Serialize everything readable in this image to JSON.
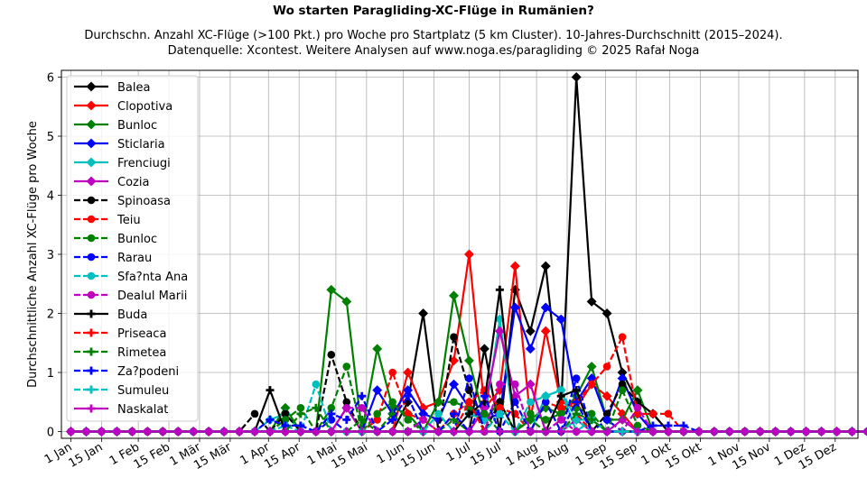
{
  "chart_data": {
    "type": "line",
    "title": "Wo starten Paragliding-XC-Flüge in Rumänien?",
    "subtitle_lines": [
      "Durchschn. Anzahl XC-Flüge (>100 Pkt.) pro Woche pro Startplatz (5 km Cluster). 10-Jahres-Durchschnitt (2015–2024).",
      "Datenquelle: Xcontest. Weitere Analysen auf www.noga.es/paragliding © 2025 Rafał Noga"
    ],
    "xlabel": "",
    "ylabel": "Durchschnittliche Anzahl XC-Flüge pro Woche",
    "grid": true,
    "legend_position": "upper-left",
    "xlim": [
      0,
      52
    ],
    "ylim": [
      -0.1,
      6.15
    ],
    "y_ticks": [
      0,
      1,
      2,
      3,
      4,
      5,
      6
    ],
    "x_ticks": [
      {
        "x": 0,
        "label": "1 Jan"
      },
      {
        "x": 2,
        "label": "15 Jan"
      },
      {
        "x": 4.4,
        "label": "1 Feb"
      },
      {
        "x": 6.4,
        "label": "15 Feb"
      },
      {
        "x": 8.4,
        "label": "1 Mär"
      },
      {
        "x": 10.4,
        "label": "15 Mär"
      },
      {
        "x": 12.9,
        "label": "1 Apr"
      },
      {
        "x": 14.9,
        "label": "15 Apr"
      },
      {
        "x": 17.3,
        "label": "1 Mai"
      },
      {
        "x": 19.3,
        "label": "15 Mai"
      },
      {
        "x": 21.7,
        "label": "1 Jun"
      },
      {
        "x": 23.7,
        "label": "15 Jun"
      },
      {
        "x": 26,
        "label": "1 Jul"
      },
      {
        "x": 28,
        "label": "15 Jul"
      },
      {
        "x": 30.4,
        "label": "1 Aug"
      },
      {
        "x": 32.4,
        "label": "15 Aug"
      },
      {
        "x": 34.9,
        "label": "1 Sep"
      },
      {
        "x": 36.9,
        "label": "15 Sep"
      },
      {
        "x": 39.1,
        "label": "1 Okt"
      },
      {
        "x": 41.1,
        "label": "15 Okt"
      },
      {
        "x": 43.6,
        "label": "1 Nov"
      },
      {
        "x": 45.6,
        "label": "15 Nov"
      },
      {
        "x": 47.9,
        "label": "1 Dez"
      },
      {
        "x": 49.9,
        "label": "15 Dez"
      }
    ],
    "weeks": [
      0,
      1,
      2,
      3,
      4,
      5,
      6,
      7,
      8,
      9,
      10,
      11,
      12,
      13,
      14,
      15,
      16,
      17,
      18,
      19,
      20,
      21,
      22,
      23,
      24,
      25,
      26,
      27,
      28,
      29,
      30,
      31,
      32,
      33,
      34,
      35,
      36,
      37,
      38,
      39,
      40,
      41,
      42,
      43,
      44,
      45,
      46,
      47,
      48,
      49,
      50,
      51,
      52
    ],
    "series": [
      {
        "name": "Balea",
        "color": "#000000",
        "dash": "solid",
        "marker": "diamond",
        "values": [
          0,
          0,
          0,
          0,
          0,
          0,
          0,
          0,
          0,
          0,
          0,
          0,
          0,
          0,
          0,
          0,
          0,
          0,
          0,
          0,
          0,
          0,
          0.5,
          2.0,
          0,
          0,
          0,
          1.4,
          0,
          2.4,
          1.7,
          2.8,
          0.4,
          6.0,
          2.2,
          2.0,
          1.0,
          0.5,
          0.3,
          0,
          0,
          0,
          0,
          0,
          0,
          0,
          0,
          0,
          0,
          0,
          0,
          0,
          0
        ]
      },
      {
        "name": "Clopotiva",
        "color": "#ff0000",
        "dash": "solid",
        "marker": "diamond",
        "values": [
          0,
          0,
          0,
          0,
          0,
          0,
          0,
          0,
          0,
          0,
          0,
          0,
          0,
          0,
          0,
          0,
          0,
          0,
          0,
          0,
          0,
          0,
          1.0,
          0.4,
          0.5,
          1.2,
          3.0,
          0.4,
          0.7,
          2.8,
          0.2,
          1.7,
          0.5,
          0.4,
          0.8,
          0.6,
          0.3,
          0,
          0,
          0,
          0,
          0,
          0,
          0,
          0,
          0,
          0,
          0,
          0,
          0,
          0,
          0,
          0
        ]
      },
      {
        "name": "Bunloc",
        "color": "#008000",
        "dash": "solid",
        "marker": "diamond",
        "values": [
          0,
          0,
          0,
          0,
          0,
          0,
          0,
          0,
          0,
          0,
          0,
          0,
          0,
          0,
          0.4,
          0,
          0,
          2.4,
          2.2,
          0,
          1.4,
          0.4,
          0.3,
          0,
          0.5,
          2.3,
          1.2,
          0.2,
          0.5,
          0,
          0.2,
          0.4,
          0.3,
          0.6,
          1.1,
          0.2,
          0.2,
          0.7,
          0,
          0,
          0,
          0,
          0,
          0,
          0,
          0,
          0,
          0,
          0,
          0,
          0,
          0,
          0
        ]
      },
      {
        "name": "Sticlaria",
        "color": "#0000ff",
        "dash": "solid",
        "marker": "diamond",
        "values": [
          0,
          0,
          0,
          0,
          0,
          0,
          0,
          0,
          0,
          0,
          0,
          0,
          0,
          0,
          0,
          0,
          0,
          0,
          0,
          0,
          0.7,
          0.3,
          0.7,
          0.3,
          0.2,
          0.8,
          0.4,
          0.2,
          0.3,
          2.1,
          1.4,
          2.1,
          1.9,
          0.5,
          0.9,
          0.2,
          0.9,
          0.3,
          0,
          0,
          0,
          0,
          0,
          0,
          0,
          0,
          0,
          0,
          0,
          0,
          0,
          0,
          0
        ]
      },
      {
        "name": "Frenciugi",
        "color": "#00bfbf",
        "dash": "solid",
        "marker": "diamond",
        "values": [
          0,
          0,
          0,
          0,
          0,
          0,
          0,
          0,
          0,
          0,
          0,
          0,
          0,
          0.2,
          0.3,
          0,
          0,
          0,
          0,
          0,
          0,
          0,
          0,
          0,
          0,
          0,
          0.3,
          0.2,
          1.9,
          0,
          0,
          0.6,
          0.7,
          0,
          0.2,
          0,
          0,
          0,
          0,
          0,
          0,
          0,
          0,
          0,
          0,
          0,
          0,
          0,
          0,
          0,
          0,
          0,
          0
        ]
      },
      {
        "name": "Cozia",
        "color": "#bf00bf",
        "dash": "solid",
        "marker": "diamond",
        "values": [
          0,
          0,
          0,
          0,
          0,
          0,
          0,
          0,
          0,
          0,
          0,
          0,
          0,
          0,
          0,
          0,
          0,
          0,
          0.4,
          0,
          0,
          0,
          0,
          0,
          0,
          0,
          0,
          0.4,
          1.7,
          0.6,
          0.8,
          0,
          0,
          0.2,
          0,
          0,
          0,
          0,
          0,
          0,
          0,
          0,
          0,
          0,
          0,
          0,
          0,
          0,
          0,
          0,
          0,
          0,
          0
        ]
      },
      {
        "name": "Spinoasa",
        "color": "#000000",
        "dash": "dashed",
        "marker": "circle",
        "values": [
          0,
          0,
          0,
          0,
          0,
          0,
          0,
          0,
          0,
          0,
          0,
          0,
          0.3,
          0,
          0.3,
          0,
          0,
          1.3,
          0.5,
          0,
          0,
          0,
          0,
          0,
          0,
          1.6,
          0.7,
          0,
          0.5,
          0,
          0,
          0,
          0,
          0,
          0,
          0.3,
          0.8,
          0.5,
          0.3,
          0,
          0,
          0,
          0,
          0,
          0,
          0,
          0,
          0,
          0,
          0,
          0,
          0,
          0
        ]
      },
      {
        "name": "Teiu",
        "color": "#ff0000",
        "dash": "dashed",
        "marker": "circle",
        "values": [
          0,
          0,
          0,
          0,
          0,
          0,
          0,
          0,
          0,
          0,
          0,
          0,
          0,
          0,
          0,
          0,
          0,
          0,
          0,
          0,
          0.2,
          1.0,
          0.3,
          0.2,
          0,
          0.3,
          0.5,
          0.7,
          0.4,
          0.3,
          0,
          0.5,
          0.4,
          0.5,
          0.8,
          1.1,
          1.6,
          0.3,
          0.3,
          0.3,
          0,
          0,
          0,
          0,
          0,
          0,
          0,
          0,
          0,
          0,
          0,
          0,
          0
        ]
      },
      {
        "name": "Bunloc",
        "color": "#008000",
        "dash": "dashed",
        "marker": "circle",
        "values": [
          0,
          0,
          0,
          0,
          0,
          0,
          0,
          0,
          0,
          0,
          0,
          0,
          0,
          0,
          0.2,
          0.4,
          0,
          0.4,
          1.1,
          0,
          0.3,
          0.5,
          0.2,
          0,
          0.5,
          0.5,
          0.4,
          0.3,
          0,
          0,
          0.3,
          0.2,
          0.3,
          0.4,
          0.3,
          0,
          0.7,
          0.1,
          0,
          0,
          0,
          0,
          0,
          0,
          0,
          0,
          0,
          0,
          0,
          0,
          0,
          0,
          0
        ]
      },
      {
        "name": "Rarau",
        "color": "#0000ff",
        "dash": "dashed",
        "marker": "circle",
        "values": [
          0,
          0,
          0,
          0,
          0,
          0,
          0,
          0,
          0,
          0,
          0,
          0,
          0,
          0,
          0,
          0,
          0,
          0.2,
          0,
          0,
          0,
          0,
          0,
          0,
          0,
          0,
          0.9,
          0,
          0,
          0.5,
          0,
          0.5,
          0,
          0.9,
          0,
          0.2,
          0,
          0,
          0,
          0,
          0,
          0,
          0,
          0,
          0,
          0,
          0,
          0,
          0,
          0,
          0,
          0,
          0
        ]
      },
      {
        "name": "Sfa?nta Ana",
        "color": "#00bfbf",
        "dash": "dashed",
        "marker": "circle",
        "values": [
          0,
          0,
          0,
          0,
          0,
          0,
          0,
          0,
          0,
          0,
          0,
          0,
          0,
          0,
          0.1,
          0,
          0.8,
          0,
          0,
          0,
          0,
          0,
          0,
          0,
          0.3,
          0,
          0,
          0,
          0.3,
          0,
          0.5,
          0.6,
          0.7,
          0.2,
          0.2,
          0,
          0,
          0,
          0,
          0,
          0,
          0,
          0,
          0,
          0,
          0,
          0,
          0,
          0,
          0,
          0,
          0,
          0
        ]
      },
      {
        "name": "Dealul Marii",
        "color": "#bf00bf",
        "dash": "dashed",
        "marker": "circle",
        "values": [
          0,
          0,
          0,
          0,
          0,
          0,
          0,
          0,
          0,
          0,
          0,
          0,
          0,
          0,
          0,
          0,
          0,
          0,
          0.4,
          0.4,
          0,
          0,
          0,
          0.2,
          0,
          0,
          0,
          0,
          0.8,
          0.8,
          0,
          0,
          0.2,
          0,
          0,
          0,
          0,
          0.4,
          0,
          0,
          0,
          0,
          0,
          0,
          0,
          0,
          0,
          0,
          0,
          0,
          0,
          0,
          0
        ]
      },
      {
        "name": "Buda",
        "color": "#000000",
        "dash": "solid",
        "marker": "plus",
        "values": [
          0,
          0,
          0,
          0,
          0,
          0,
          0,
          0,
          0,
          0,
          0,
          0,
          0,
          0.7,
          0,
          0,
          0,
          0,
          0,
          0,
          0,
          0,
          0,
          0,
          0,
          0,
          0.3,
          0.5,
          2.4,
          0,
          0,
          0,
          0.6,
          0.7,
          0,
          0,
          0,
          0,
          0,
          0,
          0,
          0,
          0,
          0,
          0,
          0,
          0,
          0,
          0,
          0,
          0,
          0,
          0
        ]
      },
      {
        "name": "Priseaca",
        "color": "#ff0000",
        "dash": "dashed",
        "marker": "plus",
        "values": [
          0,
          0,
          0,
          0,
          0,
          0,
          0,
          0,
          0,
          0,
          0,
          0,
          0,
          0,
          0,
          0,
          0,
          0,
          0,
          0,
          0,
          0,
          0,
          0,
          0,
          0,
          0.5,
          0,
          0,
          0,
          0,
          0,
          0,
          0.3,
          0,
          0,
          0,
          0,
          0,
          0,
          0,
          0,
          0,
          0,
          0,
          0,
          0,
          0,
          0,
          0,
          0,
          0,
          0
        ]
      },
      {
        "name": "Rimetea",
        "color": "#008000",
        "dash": "dashed",
        "marker": "plus",
        "values": [
          0,
          0,
          0,
          0,
          0,
          0,
          0,
          0,
          0,
          0,
          0,
          0,
          0,
          0,
          0,
          0.3,
          0.4,
          0,
          0,
          0.2,
          0,
          0.3,
          0,
          0,
          0,
          0.2,
          0,
          0,
          0,
          0,
          0.2,
          0,
          0,
          0.3,
          0.2,
          0,
          0,
          0,
          0,
          0,
          0,
          0,
          0,
          0,
          0,
          0,
          0,
          0,
          0,
          0,
          0,
          0,
          0
        ]
      },
      {
        "name": "Za?podeni",
        "color": "#0000ff",
        "dash": "dashed",
        "marker": "plus",
        "values": [
          0,
          0,
          0,
          0,
          0,
          0,
          0,
          0,
          0,
          0,
          0,
          0,
          0,
          0.2,
          0.1,
          0.1,
          0,
          0.3,
          0.2,
          0.6,
          0,
          0.2,
          0.6,
          0,
          0,
          0.3,
          0,
          0.6,
          0,
          0,
          0,
          0,
          0,
          0.5,
          0,
          0,
          0,
          0,
          0.1,
          0.1,
          0.1,
          0,
          0,
          0,
          0,
          0,
          0,
          0,
          0,
          0,
          0,
          0,
          0
        ]
      },
      {
        "name": "Sumuleu",
        "color": "#00bfbf",
        "dash": "dashed",
        "marker": "plus",
        "values": [
          0,
          0,
          0,
          0,
          0,
          0,
          0,
          0,
          0,
          0,
          0,
          0,
          0,
          0,
          0,
          0,
          0,
          0,
          0,
          0,
          0,
          0,
          0,
          0,
          0,
          0,
          0,
          0,
          0,
          0,
          0,
          0,
          0,
          0.2,
          0,
          0,
          0,
          0,
          0,
          0,
          0,
          0,
          0,
          0,
          0,
          0,
          0,
          0,
          0,
          0,
          0,
          0,
          0
        ]
      },
      {
        "name": "Naskalat",
        "color": "#bf00bf",
        "dash": "solid",
        "marker": "plus",
        "values": [
          0,
          0,
          0,
          0,
          0,
          0,
          0,
          0,
          0,
          0,
          0,
          0,
          0,
          0,
          0,
          0,
          0,
          0,
          0,
          0,
          0,
          0,
          0,
          0,
          0,
          0,
          0,
          0,
          0,
          0,
          0,
          0,
          0,
          0,
          0,
          0,
          0.2,
          0,
          0,
          0,
          0,
          0,
          0,
          0,
          0,
          0,
          0,
          0,
          0,
          0,
          0,
          0,
          0
        ]
      }
    ]
  }
}
